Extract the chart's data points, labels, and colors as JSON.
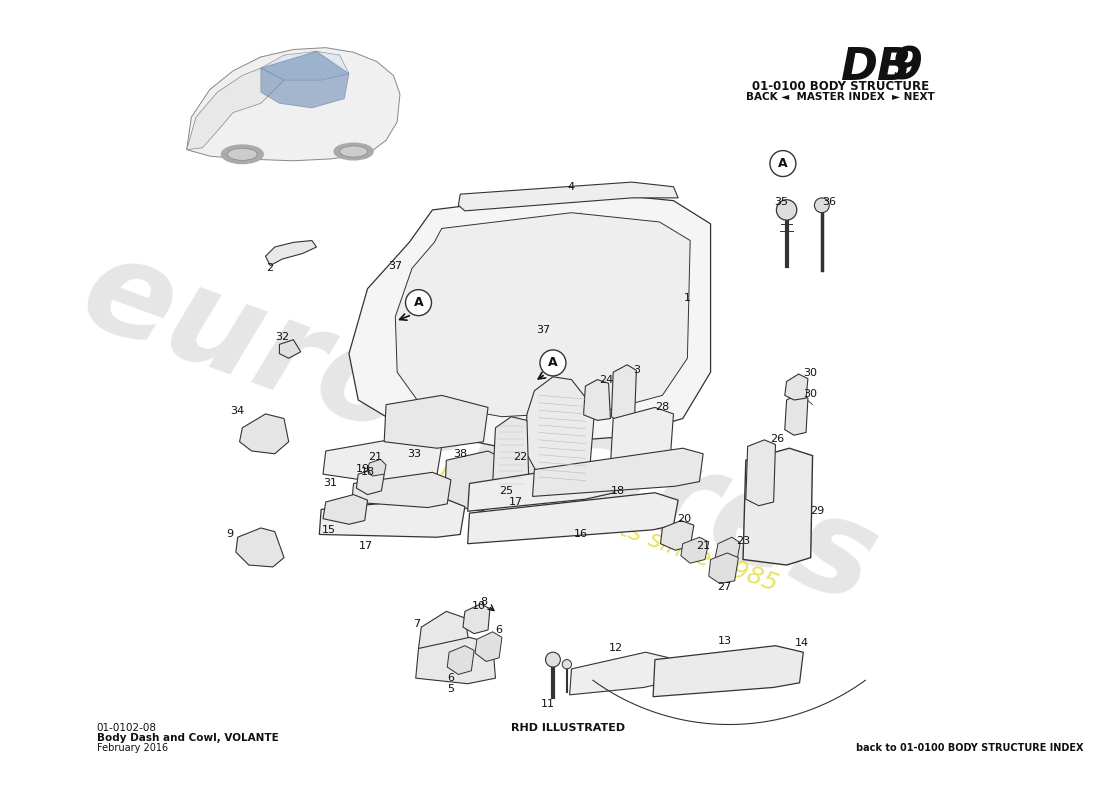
{
  "title_model": "DB 9",
  "title_section": "01-0100 BODY STRUCTURE",
  "title_nav": "BACK ◄  MASTER INDEX  ► NEXT",
  "part_number": "01-0102-08",
  "part_name": "Body Dash and Cowl, VOLANTE",
  "part_date": "February 2016",
  "rhd_note": "RHD ILLUSTRATED",
  "back_link": "back to 01-0100 BODY STRUCTURE INDEX",
  "bg_color": "#ffffff",
  "watermark_color": "#c8c8c8",
  "watermark_slogan_color": "#e8e050",
  "line_color": "#333333",
  "label_color": "#111111"
}
